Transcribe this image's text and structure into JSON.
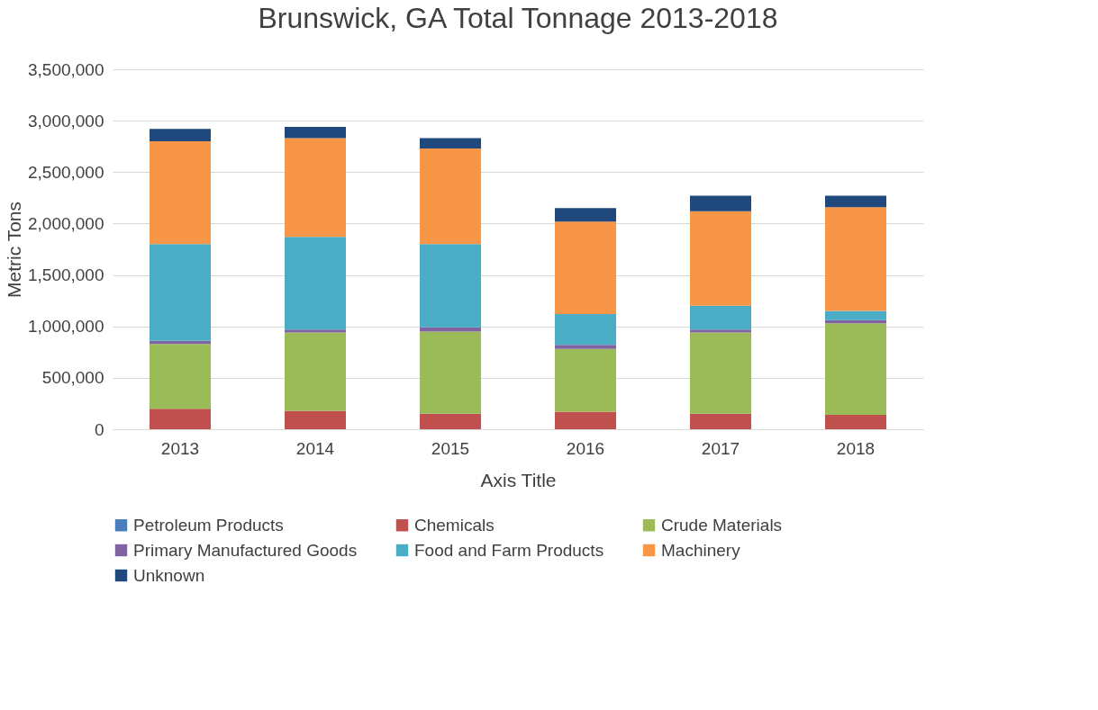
{
  "chart_data": {
    "type": "bar",
    "title": "Brunswick, GA Total Tonnage 2013-2018",
    "xlabel": "Axis Title",
    "ylabel": "Metric Tons",
    "categories": [
      "2013",
      "2014",
      "2015",
      "2016",
      "2017",
      "2018"
    ],
    "stacked": true,
    "series": [
      {
        "name": "Petroleum Products",
        "color": "#4a7ebb",
        "values": [
          0,
          0,
          0,
          0,
          0,
          0
        ]
      },
      {
        "name": "Chemicals",
        "color": "#c0504d",
        "values": [
          200000,
          180000,
          150000,
          170000,
          150000,
          140000
        ]
      },
      {
        "name": "Crude Materials",
        "color": "#9bbb59",
        "values": [
          630000,
          760000,
          800000,
          610000,
          790000,
          890000
        ]
      },
      {
        "name": "Primary Manufactured Goods",
        "color": "#8064a2",
        "values": [
          30000,
          30000,
          40000,
          40000,
          30000,
          30000
        ]
      },
      {
        "name": "Food and Farm Products",
        "color": "#4bacc6",
        "values": [
          940000,
          900000,
          810000,
          300000,
          230000,
          90000
        ]
      },
      {
        "name": "Machinery",
        "color": "#f79646",
        "values": [
          1000000,
          960000,
          930000,
          900000,
          920000,
          1010000
        ]
      },
      {
        "name": "Unknown",
        "color": "#1f497d",
        "values": [
          120000,
          110000,
          100000,
          130000,
          150000,
          110000
        ]
      }
    ],
    "ylim": [
      0,
      3500000
    ],
    "yticks": [
      0,
      {
        "value": 500000,
        "label": "500,000"
      },
      {
        "value": 1000000,
        "label": "1,000,000"
      },
      {
        "value": 1500000,
        "label": "1,500,000"
      },
      {
        "value": 2000000,
        "label": "2,000,000"
      },
      {
        "value": 2500000,
        "label": "2,500,000"
      },
      {
        "value": 3000000,
        "label": "3,000,000"
      },
      {
        "value": 3500000,
        "label": "3,500,000"
      }
    ],
    "grid": "y",
    "legend": "bottom"
  }
}
